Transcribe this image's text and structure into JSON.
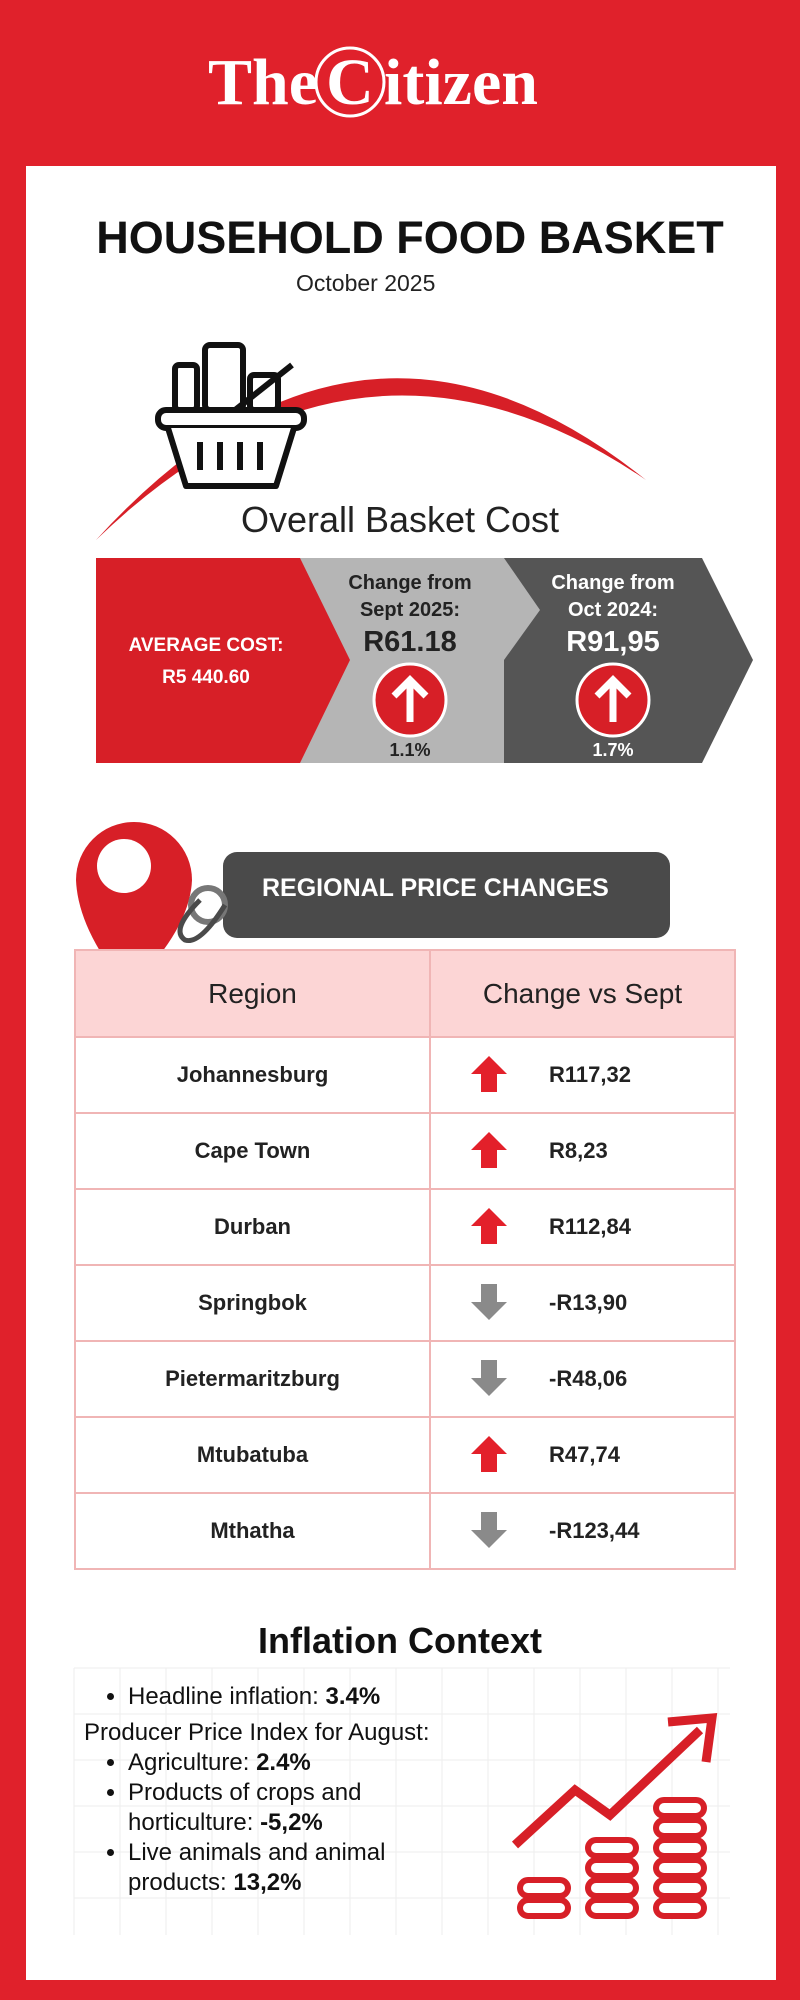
{
  "header": {
    "brand_prefix": "The",
    "brand_initial": "C",
    "brand_suffix": "itizen"
  },
  "title": "HOUSEHOLD FOOD BASKET",
  "subtitle": "October 2025",
  "overall": {
    "heading": "Overall Basket Cost",
    "average_label": "AVERAGE COST:",
    "average_value": "R5 440.60",
    "changes": [
      {
        "label_lines": [
          "Change from",
          "Sept 2025:"
        ],
        "value": "R61.18",
        "percent": "1.1%"
      },
      {
        "label_lines": [
          "Change from",
          "Oct 2024:"
        ],
        "value": "R91,95",
        "percent": "1.7%"
      }
    ]
  },
  "regional": {
    "heading": "REGIONAL PRICE CHANGES",
    "columns": [
      "Region",
      "Change vs Sept"
    ],
    "rows": [
      [
        "Johannesburg",
        "R117,32"
      ],
      [
        "Cape Town",
        "R8,23"
      ],
      [
        "Durban",
        "R112,84"
      ],
      [
        "Springbok",
        "-R13,90"
      ],
      [
        "Pietermaritzburg",
        "-R48,06"
      ],
      [
        "Mtubatuba",
        "R47,74"
      ],
      [
        "Mthatha",
        "-R123,44"
      ]
    ]
  },
  "inflation": {
    "heading": "Inflation Context",
    "headline": {
      "label": "Headline inflation:",
      "value": "3.4%"
    },
    "ppi_intro": "Producer Price Index for August:",
    "ppi_items": [
      {
        "label": "Agriculture:",
        "value": "2.4%"
      },
      {
        "label": "Products of crops and horticulture:",
        "value": "-5,2%"
      },
      {
        "label": "Live animals and animal products:",
        "value": "13,2%"
      }
    ]
  }
}
